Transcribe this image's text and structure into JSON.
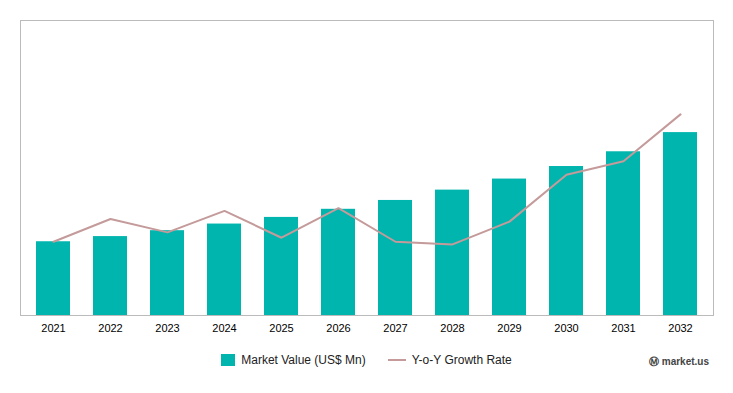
{
  "chart_data": {
    "type": "bar",
    "categories": [
      "2021",
      "2022",
      "2023",
      "2024",
      "2025",
      "2026",
      "2027",
      "2028",
      "2029",
      "2030",
      "2031",
      "2032"
    ],
    "series": [
      {
        "name": "Market Value (US$ Mn)",
        "type": "bar",
        "color": "#00B5AD",
        "values": [
          100,
          107,
          115,
          124,
          133,
          144,
          156,
          170,
          185,
          202,
          222,
          248
        ]
      },
      {
        "name": "Y-o-Y Growth Rate",
        "type": "line",
        "color": "#C49A9A",
        "axis": "y2",
        "values": [
          5.5,
          7.2,
          6.2,
          7.8,
          5.8,
          8.0,
          5.5,
          5.3,
          7.0,
          10.5,
          11.5,
          15.0
        ]
      }
    ],
    "ylim": [
      0,
      400
    ],
    "y2lim": [
      0,
      22
    ],
    "tick_labels": "x",
    "grid": false,
    "legend": "bottom",
    "annotations": [
      "Ⓜ market.us"
    ]
  }
}
